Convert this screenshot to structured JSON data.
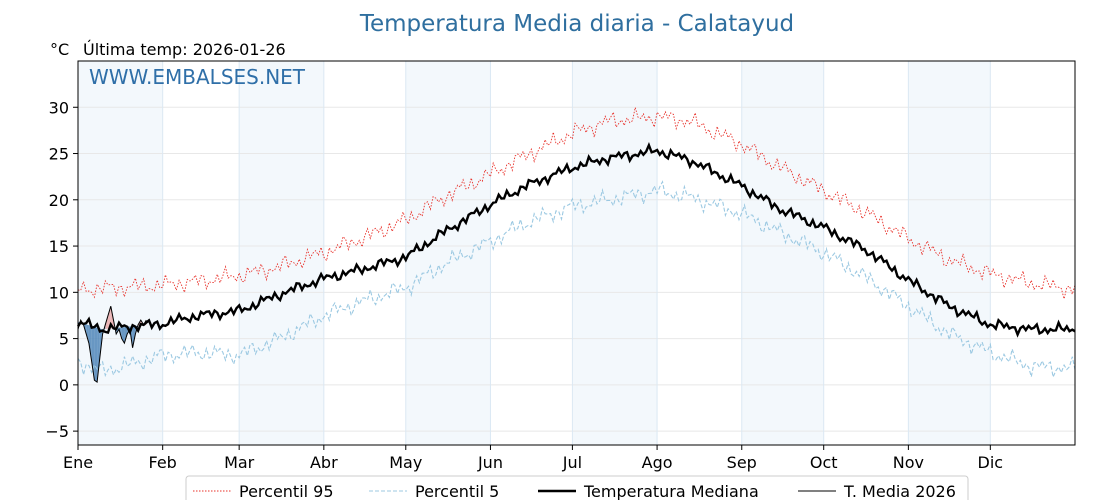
{
  "chart_data": {
    "type": "line",
    "title": "Temperatura Media diaria - Calatayud",
    "unit": "°C",
    "last_temp_label": "Última temp: 2026-01-26",
    "watermark": "WWW.EMBALSES.NET",
    "ylim": [
      -6.5,
      35
    ],
    "yticks": [
      "−5",
      "0",
      "5",
      "10",
      "15",
      "20",
      "25",
      "30"
    ],
    "ytick_values": [
      -5,
      0,
      5,
      10,
      15,
      20,
      25,
      30
    ],
    "months": [
      "Ene",
      "Feb",
      "Mar",
      "Abr",
      "May",
      "Jun",
      "Jul",
      "Ago",
      "Sep",
      "Oct",
      "Nov",
      "Dic"
    ],
    "month_start_days": [
      1,
      32,
      60,
      91,
      121,
      152,
      182,
      213,
      244,
      274,
      305,
      335
    ],
    "xlim": [
      1,
      366
    ],
    "shaded_months": [
      "Ene",
      "Mar",
      "May",
      "Jul",
      "Sep",
      "Nov"
    ],
    "grid": true,
    "legend_position": "bottom",
    "series": [
      {
        "name": "Percentil 95",
        "color": "#e8312a",
        "style": "dotted",
        "x": [
          1,
          15,
          32,
          45,
          60,
          75,
          91,
          105,
          121,
          135,
          152,
          165,
          182,
          195,
          213,
          225,
          244,
          258,
          274,
          290,
          305,
          320,
          335,
          350,
          366
        ],
        "y": [
          10.3,
          10.5,
          10.8,
          11.2,
          11.8,
          12.8,
          14.3,
          15.8,
          17.8,
          20.3,
          22.8,
          24.8,
          27.2,
          28.5,
          29.0,
          28.5,
          26.0,
          23.5,
          21.0,
          18.5,
          15.8,
          13.5,
          12.0,
          11.0,
          10.3
        ]
      },
      {
        "name": "Percentil 5",
        "color": "#9cc9e2",
        "style": "dashed",
        "x": [
          1,
          10,
          20,
          32,
          45,
          60,
          75,
          91,
          105,
          121,
          135,
          152,
          165,
          182,
          195,
          213,
          225,
          244,
          258,
          274,
          290,
          305,
          320,
          335,
          350,
          366
        ],
        "y": [
          2.5,
          1.5,
          2.2,
          3.2,
          3.5,
          3.2,
          5.0,
          7.5,
          9.0,
          10.5,
          13.0,
          15.5,
          17.5,
          19.3,
          20.0,
          21.0,
          20.3,
          18.5,
          16.5,
          14.3,
          11.5,
          8.5,
          5.5,
          3.5,
          2.0,
          1.8
        ]
      },
      {
        "name": "Temperatura Mediana",
        "color": "#000000",
        "style": "solid-thick",
        "x": [
          1,
          10,
          20,
          32,
          45,
          60,
          75,
          91,
          105,
          121,
          135,
          152,
          165,
          182,
          195,
          213,
          225,
          244,
          258,
          274,
          290,
          305,
          320,
          335,
          350,
          366
        ],
        "y": [
          6.8,
          6.0,
          6.3,
          6.6,
          7.5,
          8.0,
          9.8,
          11.5,
          12.5,
          13.8,
          16.5,
          19.5,
          21.5,
          23.5,
          24.5,
          25.3,
          24.3,
          21.5,
          19.0,
          17.0,
          14.5,
          11.3,
          8.5,
          6.5,
          6.0,
          6.0
        ]
      },
      {
        "name": "T. Media 2026",
        "color": "#000000",
        "style": "solid-thin",
        "x": [
          1,
          2,
          3,
          4,
          5,
          6,
          7,
          8,
          9,
          10,
          11,
          12,
          13,
          14,
          15,
          16,
          17,
          18,
          19,
          20,
          21,
          22,
          23,
          24,
          25,
          26
        ],
        "y": [
          6.0,
          7.0,
          6.5,
          5.5,
          4.5,
          2.5,
          0.5,
          0.3,
          3.0,
          5.5,
          6.5,
          7.5,
          8.5,
          7.0,
          5.5,
          6.0,
          5.0,
          4.5,
          5.5,
          6.0,
          4.0,
          5.5,
          6.5,
          7.0,
          6.5,
          7.0
        ]
      }
    ]
  }
}
